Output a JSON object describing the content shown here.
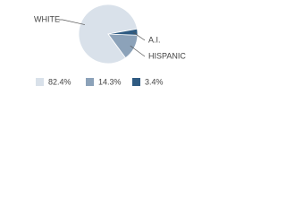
{
  "chart_data": {
    "type": "pie",
    "categories": [
      "WHITE",
      "HISPANIC",
      "A.I."
    ],
    "values": [
      82.4,
      14.3,
      3.4
    ],
    "value_labels": [
      "82.4%",
      "14.3%",
      "3.4%"
    ],
    "colors": [
      "#d9e1ea",
      "#8ca2b9",
      "#2f5b82"
    ]
  }
}
